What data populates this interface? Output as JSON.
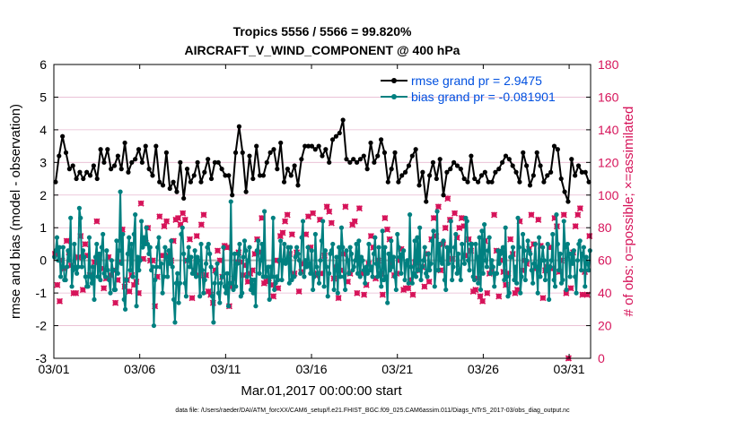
{
  "chart_data": {
    "type": "line",
    "title": "Tropics 5556 / 5566 = 99.820%",
    "subtitle": "AIRCRAFT_V_WIND_COMPONENT @ 400 hPa",
    "xlabel": "Mar.01,2017 00:00:00 start",
    "ylabel": "rmse and bias (model - observation)",
    "y2label": "# of obs: o=possible; ×=assimilated",
    "footer": "data file: /Users/raeder/DAI/ATM_forcXX/CAM6_setup/f.e21.FHIST_BGC.f09_025.CAM6assim.011/Diags_NTrS_2017-03/obs_diag_output.nc",
    "xlim": [
      0,
      31.25
    ],
    "ylim": [
      -3,
      6
    ],
    "y2lim": [
      0,
      180
    ],
    "xticks": [
      {
        "value": 0,
        "label": "03/01"
      },
      {
        "value": 5,
        "label": "03/06"
      },
      {
        "value": 10,
        "label": "03/11"
      },
      {
        "value": 15,
        "label": "03/16"
      },
      {
        "value": 20,
        "label": "03/21"
      },
      {
        "value": 25,
        "label": "03/26"
      },
      {
        "value": 30,
        "label": "03/31"
      }
    ],
    "yticks": [
      "-3",
      "-2",
      "-1",
      "0",
      "1",
      "2",
      "3",
      "4",
      "5",
      "6"
    ],
    "y2ticks": [
      "0",
      "20",
      "40",
      "60",
      "80",
      "100",
      "120",
      "140",
      "160",
      "180"
    ],
    "colors": {
      "rmse": "#000000",
      "bias": "#008080",
      "obs": "#d6145a",
      "legend_text": "#0050e0",
      "zero_line": "#b0b0b0",
      "grid": "#e7b9d0"
    },
    "series": [
      {
        "name": "rmse grand pr = 2.9475",
        "values": [
          2.4,
          3.2,
          3.8,
          3.3,
          2.8,
          2.9,
          2.5,
          2.7,
          2.5,
          2.7,
          2.6,
          2.9,
          2.5,
          3.4,
          3.0,
          3.4,
          2.8,
          2.9,
          3.2,
          2.8,
          3.6,
          2.7,
          3.0,
          3.1,
          3.4,
          3.0,
          3.5,
          2.8,
          2.6,
          3.5,
          2.4,
          2.3,
          3.3,
          2.2,
          2.4,
          2.1,
          3.0,
          1.9,
          2.8,
          2.4,
          2.6,
          3.0,
          2.4,
          2.7,
          3.1,
          2.5,
          3.0,
          3.0,
          2.8,
          2.6,
          2.6,
          2.0,
          3.3,
          4.1,
          3.3,
          2.1,
          3.2,
          2.5,
          3.5,
          2.6,
          2.6,
          3.0,
          3.3,
          3.4,
          2.8,
          3.6,
          2.4,
          2.8,
          2.6,
          2.9,
          2.3,
          3.1,
          3.5,
          3.5,
          3.5,
          3.4,
          3.5,
          3.2,
          3.4,
          3.0,
          3.7,
          3.8,
          3.9,
          4.3,
          3.1,
          3.0,
          3.1,
          3.0,
          3.1,
          3.2,
          2.8,
          3.6,
          3.0,
          3.2,
          3.7,
          3.3,
          2.4,
          2.8,
          3.3,
          2.4,
          2.6,
          2.7,
          2.9,
          3.2,
          3.4,
          2.3,
          2.7,
          1.8,
          2.6,
          3.0,
          2.5,
          3.1,
          2.0,
          2.7,
          2.8,
          3.0,
          2.9,
          2.8,
          2.5,
          2.4,
          3.2,
          2.5,
          2.4,
          2.6,
          2.7,
          2.4,
          2.4,
          2.7,
          2.8,
          3.0,
          3.2,
          3.1,
          2.9,
          2.7,
          2.4,
          3.3,
          2.9,
          2.3,
          2.6,
          3.3,
          2.9,
          2.4,
          2.6,
          2.7,
          3.5,
          3.4,
          2.5,
          2.1,
          1.8,
          3.1,
          2.6,
          2.9,
          2.7,
          2.7,
          2.4
        ]
      },
      {
        "name": "bias grand pr = -0.081901",
        "values": [
          0.1,
          0.3,
          0.7,
          0.0,
          0.4,
          -0.5,
          -0.2,
          0.4,
          -0.6,
          -0.6,
          -0.2,
          0.3,
          0.0,
          1.3,
          -0.8,
          -0.3,
          0.5,
          -0.2,
          -0.4,
          -0.2,
          1.6,
          1.3,
          -0.2,
          0.3,
          0.1,
          -0.5,
          -0.8,
          -0.8,
          0.7,
          -0.5,
          -0.7,
          -0.2,
          -1.2,
          0.1,
          0.5,
          -0.5,
          0.2,
          -0.6,
          0.4,
          0.8,
          -0.4,
          -0.5,
          0.3,
          -0.3,
          -0.6,
          -1.0,
          0.0,
          -0.3,
          -0.9,
          -0.9,
          0.6,
          -0.4,
          0.3,
          2.1,
          -0.1,
          0.8,
          -1.2,
          -1.5,
          -0.6,
          0.2,
          0.7,
          -0.3,
          0.5,
          -0.5,
          0.8,
          1.4,
          -1.4,
          0.1,
          -0.3,
          0.0,
          1.2,
          0.4,
          0.7,
          0.5,
          1.0,
          0.5,
          0.2,
          0.4,
          -0.3,
          -0.2,
          -2.0,
          -0.6,
          -0.2,
          0.4,
          0.7,
          -0.2,
          -0.1,
          -1.0,
          -0.5,
          0.4,
          0.1,
          -0.5,
          0.3,
          -0.1,
          0.6,
          -0.2,
          -1.2,
          -1.9,
          -0.7,
          -0.4,
          -1.3,
          -0.7,
          0.8,
          1.0,
          0.2,
          -0.7,
          -1.1,
          0.0,
          0.4,
          -0.2,
          0.1,
          -0.4,
          -0.4,
          0.3,
          -0.5,
          0.1,
          0.0,
          -1.1,
          0.5,
          -0.3,
          -1.0,
          -0.6,
          -0.1,
          0.4,
          0.5,
          0.2,
          -0.2,
          -1.1,
          -1.9,
          -0.7,
          -0.4,
          -0.1,
          -1.0,
          -1.3,
          -0.7,
          -0.5,
          0.4,
          -0.8,
          -1.0,
          -0.4,
          -1.4,
          -0.7,
          1.8,
          -0.7,
          -0.9,
          0.2,
          -0.8,
          -0.1,
          0.2,
          0.5,
          -1.1,
          -1.0,
          0.1,
          0.6,
          0.3,
          -0.5,
          0.0,
          0.4,
          -0.9,
          -0.6,
          -1.0,
          -0.6,
          -1.4,
          0.3,
          0.6,
          -0.4,
          0.0,
          0.5,
          -0.5,
          1.5,
          -0.5,
          -0.3,
          -0.2,
          -1.2,
          -0.2,
          -0.5,
          1.3,
          -0.9,
          -0.7,
          -0.5,
          -0.6,
          0.0,
          0.6,
          -0.6,
          0.0,
          0.5,
          -0.1,
          0.0,
          0.4,
          -0.7,
          0.4,
          -0.6,
          -0.5,
          -0.5,
          0.1,
          0.4,
          0.2,
          0.0,
          -0.4,
          0.7,
          1.2,
          -0.5,
          0.0,
          -0.2,
          0.4,
          -0.1,
          -0.4,
          0.3,
          -0.9,
          -0.5,
          0.8,
          -0.2,
          -0.4,
          -0.7,
          0.0,
          0.6,
          1.2,
          -0.8,
          0.3,
          -0.2,
          -1.1,
          -0.4,
          0.2,
          0.3,
          0.5,
          -0.9,
          -0.3,
          0.1,
          -1.0,
          0.4,
          -0.5,
          1.0,
          0.4,
          -0.5,
          -0.9,
          0.3,
          0.0,
          -0.4,
          0.4,
          0.2,
          -0.3,
          -0.2,
          0.0,
          0.5,
          -0.4,
          0.6,
          -0.5,
          0.1,
          0.0,
          -0.3,
          -0.7,
          -0.2,
          -0.4,
          0.5,
          -0.3,
          -0.2,
          -0.5,
          0.2,
          0.7,
          -0.1,
          -0.5,
          0.4,
          -0.4,
          -0.8,
          0.9,
          -0.6,
          0.4,
          -0.5,
          -1.3,
          0.2,
          -0.3,
          0.6,
          -0.2,
          0.1,
          -0.5,
          -0.9,
          0.8,
          0.4,
          0.1,
          -0.4,
          0.2,
          0.3,
          -0.6,
          -0.1,
          0.0,
          -0.7,
          1.4,
          -0.2,
          -0.7,
          -0.4,
          0.6,
          -0.5,
          0.7,
          -0.3,
          1.0,
          -0.6,
          -0.2,
          0.0,
          0.4,
          -0.4,
          -0.5,
          0.2,
          -0.3,
          -0.1,
          0.6,
          0.9,
          -0.8,
          -0.3,
          1.5,
          -0.3,
          0.5,
          0.0,
          -0.1,
          0.6,
          -0.6,
          -0.9,
          0.4,
          -0.1,
          0.3,
          1.2,
          -0.6,
          -0.2,
          0.4,
          0.8,
          -0.4,
          0.2,
          -0.3,
          -0.6,
          0.5,
          0.1,
          -0.1,
          1.3,
          1.2,
          0.0,
          -0.3,
          0.5,
          0.5,
          -0.5,
          -0.6,
          0.5,
          0.1,
          -0.7,
          0.7,
          -0.9,
          0.9,
          -0.4,
          1.1,
          0.0,
          -0.2,
          0.3,
          0.7,
          -0.4,
          0.0,
          -0.2,
          -0.8,
          -0.4,
          -0.4,
          0.3,
          -0.1,
          0.2,
          0.3,
          0.4,
          -0.6,
          1.0,
          -0.5,
          -1.1,
          -1.0,
          0.1,
          0.1,
          0.4,
          -0.6,
          -0.2,
          -0.7,
          1.3,
          0.4,
          -1.0,
          -0.5,
          0.8,
          0.3,
          -0.6,
          0.0,
          0.6,
          0.3,
          0.2,
          -0.3,
          -0.7,
          -0.1,
          0.5,
          -0.2,
          -1.0,
          0.7,
          -0.5,
          0.0,
          0.4,
          0.0,
          -0.6,
          -0.3,
          0.5,
          -1.2,
          -0.2,
          0.0,
          0.8,
          -0.6,
          -0.8,
          1.4,
          0.5,
          -0.3,
          0.2,
          -0.7,
          -0.6,
          1.2,
          0.4,
          -0.9,
          0.5,
          0.2,
          -0.5,
          0.2,
          -0.1,
          0.3,
          -0.5,
          -1.0,
          0.0,
          0.5,
          0.6,
          -0.3,
          0.2,
          0.4,
          -0.8,
          0.1,
          -0.1,
          -0.3,
          0.3
        ]
      },
      {
        "name": "# obs possible",
        "axis": "right",
        "marker": "o",
        "values": [
          64,
          45,
          35,
          60,
          55,
          72,
          65,
          57,
          40,
          40,
          62,
          75,
          42,
          70,
          63,
          51,
          51,
          59,
          84,
          62,
          55,
          43,
          49,
          62,
          51,
          54,
          34,
          48,
          59,
          79,
          44,
          48,
          41,
          51,
          45,
          47,
          40,
          95,
          61,
          71,
          80,
          60,
          60,
          32,
          50,
          87,
          63,
          81,
          84,
          63,
          60,
          72,
          85,
          86,
          82,
          89,
          85,
          60,
          73,
          37,
          54,
          75,
          51,
          82,
          88,
          51,
          41,
          39,
          34,
          54,
          66,
          60,
          50,
          69,
          68,
          32,
          44,
          49,
          59,
          65,
          59,
          51,
          57,
          47,
          52,
          54,
          64,
          73,
          65,
          86,
          46,
          47,
          49,
          45,
          38,
          60,
          43,
          75,
          77,
          84,
          88,
          64,
          76,
          52,
          65,
          41,
          53,
          58,
          76,
          87,
          68,
          89,
          51,
          52,
          85,
          52,
          63,
          93,
          90,
          83,
          49,
          56,
          37,
          54,
          64,
          93,
          47,
          52,
          82,
          84,
          40,
          92,
          52,
          39,
          45,
          58,
          75,
          68,
          49,
          60,
          52,
          39,
          86,
          79,
          73,
          58,
          51,
          52,
          60,
          67,
          42,
          43,
          43,
          48,
          39,
          59,
          59,
          54,
          56,
          44,
          64,
          47,
          73,
          86,
          75,
          93,
          54,
          70,
          80,
          98,
          85,
          61,
          89,
          74,
          80,
          86,
          81,
          63,
          73,
          66,
          41,
          42,
          49,
          38,
          35,
          72,
          40,
          52,
          54,
          88,
          66,
          38,
          60,
          53,
          45,
          52,
          73,
          64,
          40,
          42,
          84,
          54,
          60,
          58,
          67,
          88,
          70,
          55,
          85,
          69,
          37,
          54,
          56,
          68,
          55,
          86,
          81,
          53,
          60,
          88,
          40,
          0,
          43,
          65,
          81,
          88,
          92,
          39,
          53,
          39,
          75
        ]
      }
    ],
    "assimilated_ratio": 0.998
  }
}
